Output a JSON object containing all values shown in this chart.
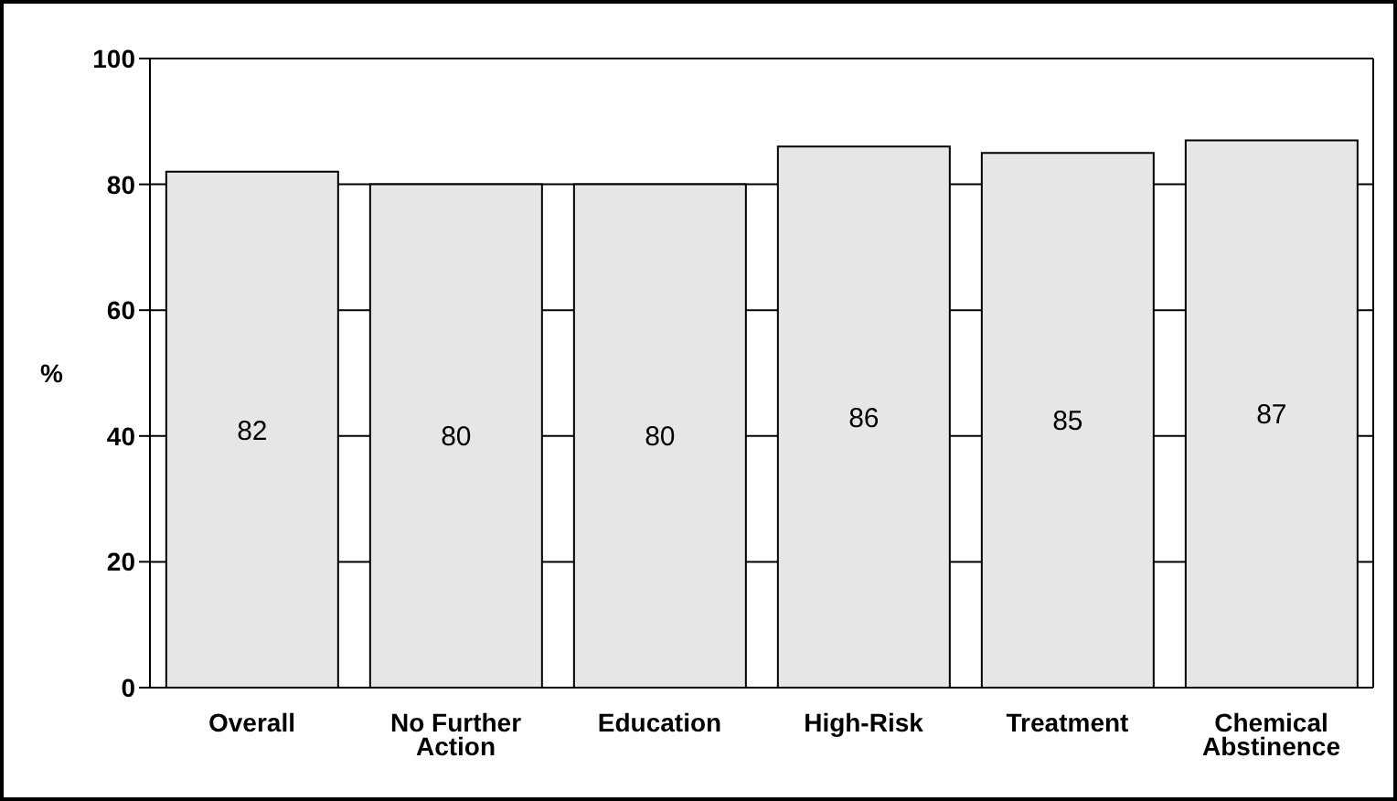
{
  "chart_data": {
    "type": "bar",
    "ylabel": "%",
    "categories": [
      "Overall",
      "No Further Action",
      "Education",
      "High-Risk",
      "Treatment",
      "Chemical Abstinence"
    ],
    "values": [
      82,
      80,
      80,
      86,
      85,
      87
    ],
    "color": "#e6e6e6",
    "ylim": [
      0,
      100
    ],
    "yticks": [
      0,
      20,
      40,
      60,
      80,
      100
    ],
    "grid": "y",
    "data_labels": true
  }
}
